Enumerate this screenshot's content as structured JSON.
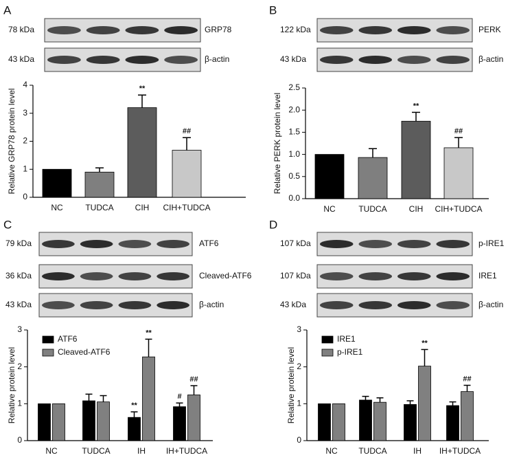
{
  "chart_data": [
    {
      "type": "bar",
      "panel": "A",
      "blots": [
        {
          "size": "78 kDa",
          "protein": "GRP78"
        },
        {
          "size": "43 kDa",
          "protein": "β-actin"
        }
      ],
      "y_label": "Relative GRP78 protein level",
      "categories": [
        "NC",
        "TUDCA",
        "CIH",
        "CIH+TUDCA"
      ],
      "values": [
        1,
        0.9,
        3.2,
        1.68
      ],
      "errors": [
        null,
        0.15,
        0.45,
        0.45
      ],
      "colors": [
        "#000000",
        "#7f7f7f",
        "#5c5c5c",
        "#c8c8c8"
      ],
      "annotations": [
        null,
        null,
        "**",
        "##"
      ],
      "ylim": [
        0,
        4
      ],
      "yticks": [
        0,
        1,
        2,
        3,
        4
      ]
    },
    {
      "type": "bar",
      "panel": "B",
      "blots": [
        {
          "size": "122 kDa",
          "protein": "PERK"
        },
        {
          "size": "43 kDa",
          "protein": "β-actin"
        }
      ],
      "y_label": "Relative PERK protein level",
      "categories": [
        "NC",
        "TUDCA",
        "CIH",
        "CIH+TUDCA"
      ],
      "values": [
        1,
        0.93,
        1.75,
        1.15
      ],
      "errors": [
        null,
        0.2,
        0.2,
        0.23
      ],
      "colors": [
        "#000000",
        "#7f7f7f",
        "#5c5c5c",
        "#c8c8c8"
      ],
      "annotations": [
        null,
        null,
        "**",
        "##"
      ],
      "ylim": [
        0,
        2.5
      ],
      "yticks": [
        {
          "value": 0,
          "label": "0.0"
        },
        0.5,
        {
          "value": 1,
          "label": "1.0"
        },
        1.5,
        {
          "value": 2,
          "label": "2.0"
        },
        2.5
      ]
    },
    {
      "type": "grouped_bar",
      "panel": "C",
      "blots": [
        {
          "size": "79 kDa",
          "protein": "ATF6"
        },
        {
          "size": "36 kDa",
          "protein": "Cleaved-ATF6"
        },
        {
          "size": "43 kDa",
          "protein": "β-actin"
        }
      ],
      "y_label": "Relative protein level",
      "categories": [
        "NC",
        "TUDCA",
        "IH",
        "IH+TUDCA"
      ],
      "series": [
        {
          "name": "ATF6",
          "color": "#000000",
          "values": [
            1,
            1.08,
            0.63,
            0.92
          ],
          "errors": [
            null,
            0.18,
            0.15,
            0.1
          ],
          "annotations": [
            null,
            null,
            "**",
            "#"
          ]
        },
        {
          "name": "Cleaved-ATF6",
          "color": "#808080",
          "values": [
            1,
            1.05,
            2.27,
            1.24
          ],
          "errors": [
            null,
            0.17,
            0.48,
            0.25
          ],
          "annotations": [
            null,
            null,
            "**",
            "##"
          ]
        }
      ],
      "legend": "upper left",
      "ylim": [
        0,
        3
      ],
      "yticks": [
        0,
        1,
        2,
        3
      ]
    },
    {
      "type": "grouped_bar",
      "panel": "D",
      "blots": [
        {
          "size": "107 kDa",
          "protein": "p-IRE1"
        },
        {
          "size": "107 kDa",
          "protein": "IRE1"
        },
        {
          "size": "43 kDa",
          "protein": "β-actin"
        }
      ],
      "y_label": "Relative protein level",
      "categories": [
        "NC",
        "TUDCA",
        "IH",
        "IH+TUDCA"
      ],
      "series": [
        {
          "name": "IRE1",
          "color": "#000000",
          "values": [
            1,
            1.1,
            0.98,
            0.95
          ],
          "errors": [
            null,
            0.1,
            0.1,
            0.1
          ],
          "annotations": [
            null,
            null,
            null,
            null
          ]
        },
        {
          "name": "p-IRE1",
          "color": "#808080",
          "values": [
            1,
            1.04,
            2.02,
            1.33
          ],
          "errors": [
            null,
            0.12,
            0.45,
            0.17
          ],
          "annotations": [
            null,
            null,
            "**",
            "##"
          ]
        }
      ],
      "legend": "upper left",
      "ylim": [
        0,
        3
      ],
      "yticks": [
        0,
        1,
        2,
        3
      ]
    }
  ]
}
